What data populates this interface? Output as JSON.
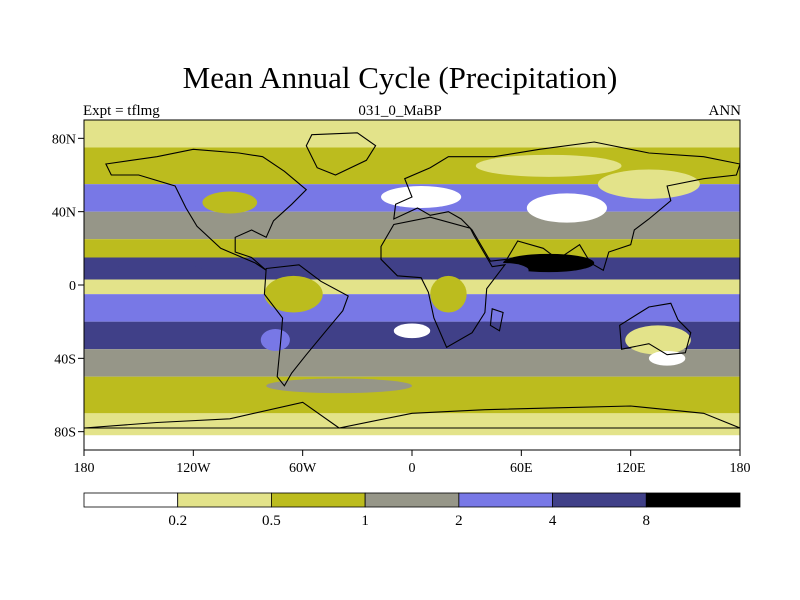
{
  "chart_data": {
    "type": "heatmap",
    "title": "Mean Annual Cycle (Precipitation)",
    "subtitle_left": "Expt = tflmg",
    "subtitle_center": "031_0_MaBP",
    "subtitle_right": "ANN",
    "x_axis": {
      "range": [
        -180,
        180
      ],
      "ticks": [
        -180,
        -120,
        -60,
        0,
        60,
        120,
        180
      ],
      "tick_labels": [
        "180",
        "120W",
        "60W",
        "0",
        "60E",
        "120E",
        "180"
      ]
    },
    "y_axis": {
      "range": [
        -90,
        90
      ],
      "ticks": [
        80,
        40,
        0,
        -40,
        -80
      ],
      "tick_labels": [
        "80N",
        "40N",
        "0",
        "40S",
        "80S"
      ]
    },
    "colorbar": {
      "thresholds": [
        "0.2",
        "0.5",
        "1",
        "2",
        "4",
        "8"
      ],
      "colors": [
        "#ffffff",
        "#e3e38a",
        "#bcbc1e",
        "#969688",
        "#7878e6",
        "#404088",
        "#000000"
      ]
    },
    "zonal_bands": [
      {
        "lat_range": [
          90,
          75
        ],
        "level": 1
      },
      {
        "lat_range": [
          75,
          55
        ],
        "level": 2
      },
      {
        "lat_range": [
          55,
          40
        ],
        "level": 4
      },
      {
        "lat_range": [
          40,
          25
        ],
        "level": 3
      },
      {
        "lat_range": [
          25,
          15
        ],
        "level": 2
      },
      {
        "lat_range": [
          15,
          3
        ],
        "level": 5
      },
      {
        "lat_range": [
          3,
          -5
        ],
        "level": 1
      },
      {
        "lat_range": [
          -5,
          -20
        ],
        "level": 4
      },
      {
        "lat_range": [
          -20,
          -35
        ],
        "level": 5
      },
      {
        "lat_range": [
          -35,
          -50
        ],
        "level": 3
      },
      {
        "lat_range": [
          -50,
          -70
        ],
        "level": 2
      },
      {
        "lat_range": [
          -70,
          -82
        ],
        "level": 1
      },
      {
        "lat_range": [
          -82,
          -90
        ],
        "level": 0
      }
    ],
    "features": [
      {
        "lon": 75,
        "lat": 65,
        "rx": 40,
        "ry": 6,
        "level": 1
      },
      {
        "lon": 85,
        "lat": 42,
        "rx": 22,
        "ry": 8,
        "level": 0
      },
      {
        "lon": 5,
        "lat": 48,
        "rx": 22,
        "ry": 6,
        "level": 0
      },
      {
        "lon": 130,
        "lat": 55,
        "rx": 28,
        "ry": 8,
        "level": 1
      },
      {
        "lon": -100,
        "lat": 45,
        "rx": 15,
        "ry": 6,
        "level": 2
      },
      {
        "lon": 75,
        "lat": 12,
        "rx": 25,
        "ry": 5,
        "level": 6
      },
      {
        "lon": 50,
        "lat": 8,
        "rx": 14,
        "ry": 4,
        "level": 5
      },
      {
        "lon": 120,
        "lat": 10,
        "rx": 20,
        "ry": 5,
        "level": 5
      },
      {
        "lon": -140,
        "lat": 8,
        "rx": 25,
        "ry": 4,
        "level": 5
      },
      {
        "lon": -65,
        "lat": -5,
        "rx": 16,
        "ry": 10,
        "level": 2
      },
      {
        "lon": 20,
        "lat": -5,
        "rx": 10,
        "ry": 10,
        "level": 2
      },
      {
        "lon": 0,
        "lat": -25,
        "rx": 10,
        "ry": 4,
        "level": 0
      },
      {
        "lon": 40,
        "lat": -25,
        "rx": 15,
        "ry": 5,
        "level": 5
      },
      {
        "lon": 135,
        "lat": -30,
        "rx": 18,
        "ry": 8,
        "level": 1
      },
      {
        "lon": 140,
        "lat": -40,
        "rx": 10,
        "ry": 4,
        "level": 0
      },
      {
        "lon": -75,
        "lat": -30,
        "rx": 8,
        "ry": 6,
        "level": 4
      },
      {
        "lon": -40,
        "lat": -55,
        "rx": 40,
        "ry": 4,
        "level": 3
      }
    ]
  }
}
